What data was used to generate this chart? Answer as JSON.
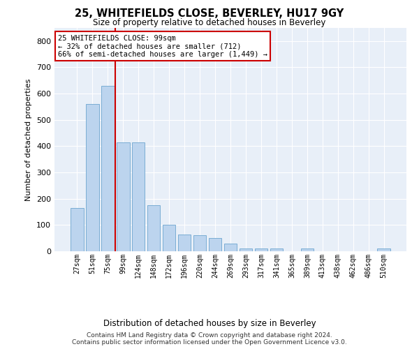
{
  "title": "25, WHITEFIELDS CLOSE, BEVERLEY, HU17 9GY",
  "subtitle": "Size of property relative to detached houses in Beverley",
  "xlabel": "Distribution of detached houses by size in Beverley",
  "ylabel": "Number of detached properties",
  "bar_color": "#bcd4ee",
  "bar_edge_color": "#7aadd4",
  "background_color": "#e8eff8",
  "grid_color": "#ffffff",
  "bins": [
    "27sqm",
    "51sqm",
    "75sqm",
    "99sqm",
    "124sqm",
    "148sqm",
    "172sqm",
    "196sqm",
    "220sqm",
    "244sqm",
    "269sqm",
    "293sqm",
    "317sqm",
    "341sqm",
    "365sqm",
    "389sqm",
    "413sqm",
    "438sqm",
    "462sqm",
    "486sqm",
    "510sqm"
  ],
  "values": [
    165,
    560,
    630,
    415,
    415,
    175,
    100,
    65,
    60,
    50,
    30,
    10,
    10,
    10,
    0,
    10,
    0,
    0,
    0,
    0,
    10
  ],
  "ylim": [
    0,
    850
  ],
  "yticks": [
    0,
    100,
    200,
    300,
    400,
    500,
    600,
    700,
    800
  ],
  "property_bin_index": 3,
  "vline_color": "#cc0000",
  "annotation_text": "25 WHITEFIELDS CLOSE: 99sqm\n← 32% of detached houses are smaller (712)\n66% of semi-detached houses are larger (1,449) →",
  "annotation_box_color": "#ffffff",
  "annotation_box_edge": "#cc0000",
  "footer": "Contains HM Land Registry data © Crown copyright and database right 2024.\nContains public sector information licensed under the Open Government Licence v3.0."
}
